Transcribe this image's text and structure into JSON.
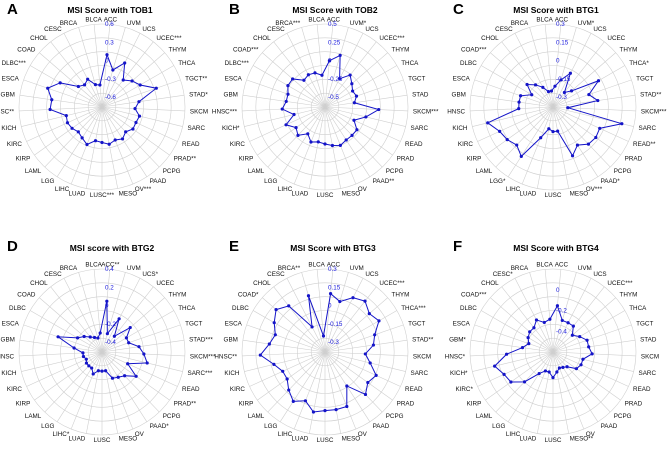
{
  "figure": {
    "categories": [
      "ACC",
      "UVM",
      "UCS",
      "UCEC",
      "THYM",
      "THCA",
      "TGCT",
      "STAD",
      "SKCM",
      "SARC",
      "READ",
      "PRAD",
      "PCPG",
      "PAAD",
      "OV",
      "MESO",
      "LUSC",
      "LUAD",
      "LIHC",
      "LGG",
      "LAML",
      "KIRP",
      "KIRC",
      "KICH",
      "HNSC",
      "GBM",
      "ESCA",
      "DLBC",
      "COAD",
      "CHOL",
      "CESC",
      "BRCA",
      "BLCA"
    ],
    "series_color": "#1414c8"
  },
  "chart_data": [
    {
      "type": "radar",
      "panel": "A",
      "title": "MSI Score with TOB1",
      "ticks": [
        "0.6",
        "0.3",
        "0",
        "-0.3",
        "-0.6"
      ],
      "rlim": [
        -0.6,
        0.6
      ],
      "labels": [
        "ACC",
        "UVM",
        "UCS",
        "UCEC***",
        "THYM",
        "THCA",
        "TGCT**",
        "STAD*",
        "SKCM",
        "SARC",
        "READ",
        "PRAD**",
        "PCPG",
        "PAAD",
        "OV***",
        "MESO",
        "LUSC***",
        "LUAD",
        "LIHC",
        "LGG",
        "LAML",
        "KIRP",
        "KIRC",
        "KICH",
        "HNSC**",
        "GBM",
        "ESCA",
        "DLBC***",
        "COAD",
        "CHOL",
        "CESC",
        "BRCA",
        "BLCA"
      ],
      "values": [
        0.1,
        -0.13,
        0.05,
        -0.2,
        -0.11,
        -0.04,
        0.18,
        -0.15,
        -0.22,
        -0.13,
        -0.15,
        -0.14,
        -0.2,
        -0.14,
        -0.18,
        -0.14,
        -0.18,
        -0.2,
        -0.1,
        -0.16,
        -0.2,
        -0.16,
        -0.14,
        -0.16,
        0.09,
        0.07,
        0.18,
        0.03,
        -0.25,
        -0.3,
        -0.25,
        -0.38,
        -0.4
      ]
    },
    {
      "type": "radar",
      "panel": "B",
      "title": "MSI Score with TOB2",
      "ticks": [
        "0.5",
        "0.25",
        "0",
        "-0.25",
        "-0.5"
      ],
      "rlim": [
        -0.5,
        0.5
      ],
      "labels": [
        "ACC",
        "UVM*",
        "UCS",
        "UCEC***",
        "THYM",
        "THCA",
        "TGCT",
        "STAD",
        "SKCM***",
        "SARC",
        "READ",
        "PRAD",
        "PCPG",
        "PAAD**",
        "OV",
        "MESO",
        "LUSC",
        "LUAD",
        "LIHC",
        "LGG",
        "LAML",
        "KIRP",
        "KIRC",
        "KICH*",
        "HNSC***",
        "GBM",
        "ESCA",
        "DLBC***",
        "COAD***",
        "CHOL",
        "CESC",
        "BRCA***",
        "BLCA"
      ],
      "values": [
        0.0,
        0.1,
        -0.2,
        -0.08,
        -0.15,
        -0.2,
        -0.18,
        -0.23,
        0.1,
        -0.06,
        -0.2,
        -0.1,
        -0.1,
        -0.1,
        -0.07,
        -0.1,
        -0.13,
        -0.15,
        -0.12,
        -0.2,
        -0.1,
        -0.15,
        -0.05,
        -0.2,
        -0.05,
        -0.1,
        -0.1,
        -0.05,
        -0.05,
        -0.17,
        -0.14,
        -0.15,
        -0.2
      ]
    },
    {
      "type": "radar",
      "panel": "C",
      "title": "MSI Score with BTG1",
      "ticks": [
        "0.3",
        "0.15",
        "0",
        "-0.15",
        "-0.3"
      ],
      "rlim": [
        -0.3,
        0.3
      ],
      "labels": [
        "ACC",
        "UVM*",
        "UCS",
        "UCEC",
        "THYM",
        "THCA*",
        "TGCT",
        "STAD**",
        "SKCM***",
        "SARC",
        "READ**",
        "PRAD",
        "PCPG",
        "PAAD*",
        "OV***",
        "MESO",
        "LUSC",
        "LUAD",
        "LIHC",
        "LGG*",
        "LAML",
        "KIRP",
        "KIRC",
        "KICH",
        "HNSC",
        "GBM",
        "ESCA",
        "DLBC",
        "COAD***",
        "CHOL",
        "CESC",
        "BRCA",
        "BLCA"
      ],
      "values": [
        -0.21,
        -0.15,
        -0.07,
        -0.23,
        -0.18,
        0.05,
        -0.07,
        -0.01,
        -0.26,
        0.2,
        0.04,
        0.05,
        0.04,
        -0.01,
        0.05,
        -0.18,
        -0.18,
        -0.2,
        -0.11,
        0.1,
        0.05,
        0.08,
        0.1,
        0.17,
        -0.1,
        -0.1,
        -0.1,
        -0.18,
        -0.1,
        -0.15,
        -0.2,
        -0.25,
        -0.25
      ]
    },
    {
      "type": "radar",
      "panel": "D",
      "title": "MSI score with BTG2",
      "ticks": [
        "0.4",
        "0.2",
        "0",
        "-0.2",
        "-0.4"
      ],
      "rlim": [
        -0.4,
        0.4
      ],
      "labels": [
        "ACC**",
        "UVM",
        "UCS*",
        "UCEC",
        "THYM",
        "THCA",
        "TGCT",
        "STAD***",
        "SKCM***",
        "SARC***",
        "READ",
        "PRAD**",
        "PCPG",
        "PAAD*",
        "OV",
        "MESO",
        "LUSC",
        "LUAD",
        "LIHC*",
        "LGG",
        "LAML",
        "KIRP",
        "KIRC",
        "KICH",
        "HNSC",
        "GBM",
        "ESCA",
        "DLBC",
        "COAD",
        "CHOL",
        "CESC",
        "BRCA",
        "BLCA"
      ],
      "values": [
        0.05,
        -0.3,
        -0.1,
        -0.29,
        -0.1,
        -0.2,
        -0.2,
        -0.1,
        -0.05,
        0.0,
        -0.2,
        -0.05,
        -0.15,
        -0.18,
        -0.2,
        -0.3,
        -0.3,
        -0.3,
        -0.25,
        -0.3,
        -0.3,
        -0.3,
        -0.32,
        -0.3,
        -0.3,
        -0.2,
        0.0,
        -0.2,
        -0.25,
        -0.3,
        -0.33,
        -0.35,
        -0.3
      ]
    },
    {
      "type": "radar",
      "panel": "E",
      "title": "MSI Score with BTG3",
      "ticks": [
        "0.3",
        "0.15",
        "0",
        "-0.15",
        "-0.3"
      ],
      "rlim": [
        -0.3,
        0.3
      ],
      "labels": [
        "ACC",
        "UVM",
        "UCS",
        "UCEC***",
        "THYM",
        "THCA***",
        "TGCT",
        "STAD**",
        "SKCM",
        "SARC",
        "READ",
        "PRAD",
        "PCPG",
        "PAAD",
        "OV",
        "MESO",
        "LUSC",
        "LUAD",
        "LIHC",
        "LGG",
        "LAML",
        "KIRP",
        "KIRC",
        "KICH",
        "HNSC**",
        "GBM",
        "ESCA",
        "DLBC",
        "COAD*",
        "CHOL",
        "CESC",
        "BRCA**",
        "BLCA"
      ],
      "values": [
        0.1,
        0.05,
        0.12,
        0.15,
        0.1,
        0.13,
        0.05,
        0.02,
        -0.05,
        0.0,
        0.08,
        0.05,
        0.1,
        -0.05,
        0.1,
        0.1,
        0.1,
        0.12,
        0.05,
        0.1,
        0.05,
        0.0,
        0.0,
        0.05,
        0.15,
        0.08,
        0.05,
        0.1,
        0.15,
        0.1,
        -0.15,
        0.1,
        -0.25
      ]
    },
    {
      "type": "radar",
      "panel": "F",
      "title": "MSI Score with BTG4",
      "ticks": [
        "0",
        "-0.2",
        "-0.4"
      ],
      "rlim": [
        -0.5,
        0.2
      ],
      "labels": [
        "ACC",
        "UVM",
        "UCS",
        "UCEC***",
        "THYM",
        "THCA",
        "TGCT",
        "STAD",
        "SKCM",
        "SARC",
        "READ",
        "PRAD",
        "PCPG",
        "PAAD",
        "OV",
        "MESO**",
        "LUSC",
        "LUAD",
        "LIHC",
        "LGG",
        "LAML",
        "KIRP",
        "KIRC*",
        "KICH*",
        "HNSC*",
        "GBM*",
        "ESCA",
        "DLBC",
        "COAD***",
        "CHOL",
        "CESC*",
        "BRCA",
        "BLCA"
      ],
      "values": [
        -0.15,
        -0.28,
        -0.28,
        -0.28,
        -0.35,
        -0.3,
        -0.25,
        -0.25,
        -0.22,
        -0.3,
        -0.3,
        -0.32,
        -0.4,
        -0.42,
        -0.43,
        -0.4,
        -0.35,
        -0.4,
        -0.4,
        -0.35,
        -0.2,
        -0.1,
        -0.08,
        -0.02,
        -0.15,
        -0.3,
        -0.35,
        -0.32,
        -0.3,
        -0.3,
        -0.25,
        -0.3,
        -0.28
      ]
    }
  ]
}
